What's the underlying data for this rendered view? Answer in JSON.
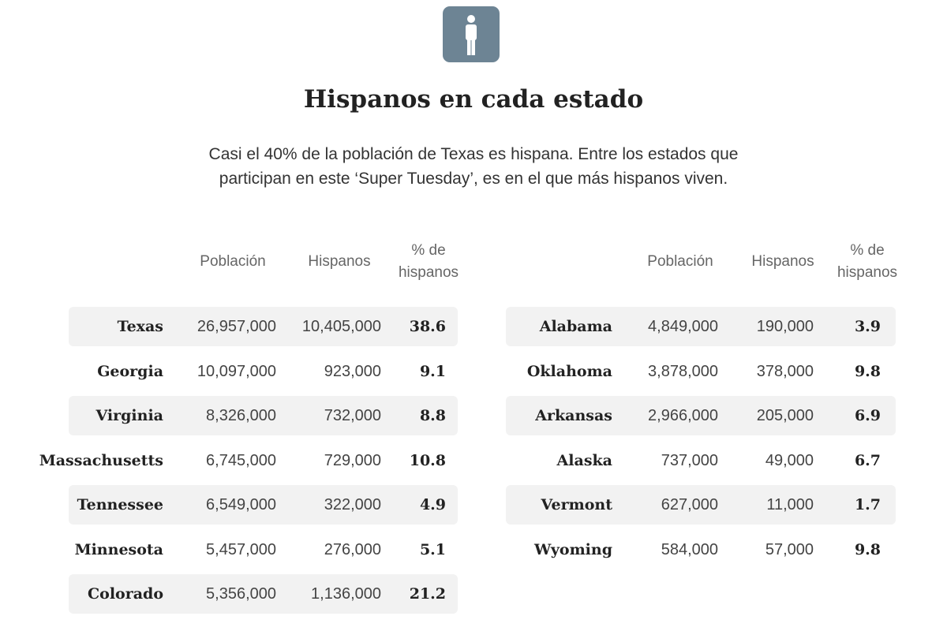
{
  "header": {
    "title": "Hispanos en cada estado",
    "description": "Casi el 40% de la población de Texas es hispana. Entre los estados que participan en este ‘Super Tuesday’, es en el que más hispanos viven."
  },
  "tables": [
    {
      "columns": [
        "Población",
        "Hispanos",
        "% de hispanos"
      ],
      "rows": [
        [
          "Texas",
          "26,957,000",
          "10,405,000",
          "38.6"
        ],
        [
          "Georgia",
          "10,097,000",
          "923,000",
          "9.1"
        ],
        [
          "Virginia",
          "8,326,000",
          "732,000",
          "8.8"
        ],
        [
          "Massachusetts",
          "6,745,000",
          "729,000",
          "10.8"
        ],
        [
          "Tennessee",
          "6,549,000",
          "322,000",
          "4.9"
        ],
        [
          "Minnesota",
          "5,457,000",
          "276,000",
          "5.1"
        ],
        [
          "Colorado",
          "5,356,000",
          "1,136,000",
          "21.2"
        ]
      ]
    },
    {
      "columns": [
        "Población",
        "Hispanos",
        "% de hispanos"
      ],
      "rows": [
        [
          "Alabama",
          "4,849,000",
          "190,000",
          "3.9"
        ],
        [
          "Oklahoma",
          "3,878,000",
          "378,000",
          "9.8"
        ],
        [
          "Arkansas",
          "2,966,000",
          "205,000",
          "6.9"
        ],
        [
          "Alaska",
          "737,000",
          "49,000",
          "6.7"
        ],
        [
          "Vermont",
          "627,000",
          "11,000",
          "1.7"
        ],
        [
          "Wyoming",
          "584,000",
          "57,000",
          "9.8"
        ]
      ]
    }
  ]
}
